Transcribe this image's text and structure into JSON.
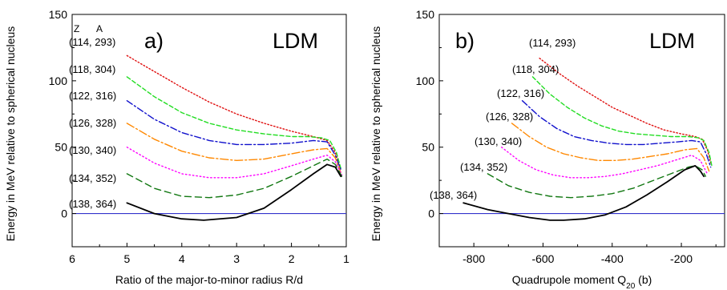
{
  "chart_data": [
    {
      "type": "line",
      "panel_label": "a)",
      "annotation": "LDM",
      "column_header": [
        "Z",
        "A"
      ],
      "xlabel": "Ratio of the major-to-minor radius R/d",
      "ylabel": "Energy in MeV relative to spherical nucleus",
      "xlim": [
        6,
        1
      ],
      "ylim": [
        -25,
        150
      ],
      "xticks": [
        "6",
        "5",
        "4",
        "3",
        "2",
        "1"
      ],
      "yticks": [
        "0",
        "50",
        "100",
        "150"
      ],
      "grid": false,
      "reference_line": {
        "y": 0,
        "color": "#3333cc"
      },
      "series": [
        {
          "name": "(114, 293)",
          "color": "#e01010",
          "dash": "1.5 2.5",
          "x": [
            5.0,
            4.5,
            4.0,
            3.5,
            3.0,
            2.5,
            2.0,
            1.6,
            1.35,
            1.2,
            1.12
          ],
          "y": [
            119,
            107,
            95,
            84,
            75,
            68,
            62,
            58,
            55,
            46,
            35
          ]
        },
        {
          "name": "(118, 304)",
          "color": "#22dd22",
          "dash": "5 3",
          "x": [
            5.0,
            4.5,
            4.0,
            3.5,
            3.0,
            2.5,
            2.0,
            1.7,
            1.45,
            1.3,
            1.18,
            1.1
          ],
          "y": [
            103,
            88,
            76,
            68,
            63,
            60,
            58,
            58,
            57,
            55,
            46,
            34
          ]
        },
        {
          "name": "(122, 316)",
          "color": "#1010cc",
          "dash": "8 3 2 3",
          "x": [
            5.0,
            4.5,
            4.0,
            3.5,
            3.0,
            2.5,
            2.0,
            1.6,
            1.35,
            1.2,
            1.1
          ],
          "y": [
            85,
            71,
            61,
            55,
            52,
            52,
            53,
            55,
            54,
            44,
            33
          ]
        },
        {
          "name": "(126, 328)",
          "color": "#ff8800",
          "dash": "10 3 2 3",
          "x": [
            5.0,
            4.5,
            4.0,
            3.5,
            3.0,
            2.5,
            2.0,
            1.6,
            1.35,
            1.2,
            1.1
          ],
          "y": [
            68,
            56,
            47,
            42,
            40,
            41,
            45,
            48,
            49,
            42,
            31
          ]
        },
        {
          "name": "(130, 340)",
          "color": "#ff00ff",
          "dash": "1.5 3",
          "x": [
            5.0,
            4.5,
            4.0,
            3.5,
            3.0,
            2.5,
            2.0,
            1.6,
            1.35,
            1.2,
            1.08
          ],
          "y": [
            50,
            38,
            30,
            27,
            27,
            30,
            36,
            41,
            44,
            39,
            29
          ]
        },
        {
          "name": "(134, 352)",
          "color": "#117711",
          "dash": "8 5",
          "x": [
            5.0,
            4.5,
            4.0,
            3.5,
            3.0,
            2.5,
            2.0,
            1.6,
            1.35,
            1.2,
            1.08
          ],
          "y": [
            30,
            19,
            13,
            12,
            14,
            19,
            28,
            36,
            41,
            37,
            28
          ]
        },
        {
          "name": "(138, 364)",
          "color": "#000000",
          "dash": "",
          "x": [
            5.0,
            4.5,
            4.0,
            3.6,
            3.0,
            2.5,
            2.0,
            1.6,
            1.35,
            1.2,
            1.1
          ],
          "y": [
            8,
            0,
            -4,
            -5,
            -3,
            4,
            18,
            30,
            37,
            35,
            28
          ]
        }
      ]
    },
    {
      "type": "line",
      "panel_label": "b)",
      "annotation": "LDM",
      "xlabel": "Quadrupole moment Q",
      "xlabel_sub": "20",
      "xlabel_unit": " (b)",
      "ylabel": "Energy in MeV relative to spherical nucleus",
      "xlim": [
        -900,
        -75
      ],
      "ylim": [
        -25,
        150
      ],
      "xticks": [
        "-800",
        "-600",
        "-400",
        "-200"
      ],
      "yticks": [
        "0",
        "50",
        "100",
        "150"
      ],
      "grid": false,
      "reference_line": {
        "y": 0,
        "color": "#3333cc"
      },
      "series": [
        {
          "name": "(114, 293)",
          "color": "#e01010",
          "dash": "1.5 2.5",
          "x": [
            -610,
            -550,
            -500,
            -450,
            -400,
            -350,
            -300,
            -250,
            -200,
            -160,
            -140,
            -125,
            -115
          ],
          "y": [
            117,
            105,
            96,
            88,
            80,
            74,
            68,
            63,
            60,
            58,
            56,
            48,
            38
          ]
        },
        {
          "name": "(118, 304)",
          "color": "#22dd22",
          "dash": "5 3",
          "x": [
            -630,
            -580,
            -530,
            -480,
            -430,
            -380,
            -330,
            -280,
            -230,
            -180,
            -150,
            -135,
            -120,
            -112
          ],
          "y": [
            103,
            90,
            80,
            72,
            66,
            62,
            60,
            59,
            58,
            58,
            57,
            55,
            46,
            36
          ]
        },
        {
          "name": "(122, 316)",
          "color": "#1010cc",
          "dash": "8 3 2 3",
          "x": [
            -660,
            -610,
            -560,
            -510,
            -460,
            -410,
            -360,
            -310,
            -260,
            -210,
            -170,
            -145,
            -128,
            -115
          ],
          "y": [
            85,
            73,
            64,
            58,
            55,
            53,
            52,
            52,
            53,
            54,
            55,
            54,
            45,
            35
          ]
        },
        {
          "name": "(126, 328)",
          "color": "#ff8800",
          "dash": "10 3 2 3",
          "x": [
            -690,
            -640,
            -590,
            -540,
            -490,
            -440,
            -390,
            -340,
            -290,
            -240,
            -190,
            -155,
            -135,
            -120
          ],
          "y": [
            68,
            58,
            50,
            45,
            42,
            40,
            40,
            41,
            43,
            45,
            48,
            49,
            42,
            32
          ]
        },
        {
          "name": "(130, 340)",
          "color": "#ff00ff",
          "dash": "1.5 3",
          "x": [
            -720,
            -670,
            -620,
            -570,
            -520,
            -470,
            -420,
            -370,
            -320,
            -270,
            -220,
            -170,
            -145,
            -125
          ],
          "y": [
            50,
            40,
            33,
            29,
            27,
            27,
            28,
            30,
            33,
            36,
            40,
            44,
            40,
            30
          ]
        },
        {
          "name": "(134, 352)",
          "color": "#117711",
          "dash": "8 5",
          "x": [
            -760,
            -700,
            -640,
            -580,
            -520,
            -460,
            -400,
            -340,
            -280,
            -220,
            -180,
            -160,
            -140,
            -130
          ],
          "y": [
            30,
            21,
            16,
            13,
            12,
            13,
            15,
            19,
            25,
            31,
            35,
            36,
            33,
            28
          ]
        },
        {
          "name": "(138, 364)",
          "color": "#000000",
          "dash": "",
          "x": [
            -830,
            -760,
            -700,
            -640,
            -580,
            -540,
            -480,
            -420,
            -360,
            -300,
            -240,
            -190,
            -160,
            -145,
            -135
          ],
          "y": [
            8,
            3,
            0,
            -3,
            -5,
            -5,
            -4,
            -1,
            5,
            14,
            24,
            33,
            36,
            32,
            28
          ]
        }
      ]
    }
  ]
}
